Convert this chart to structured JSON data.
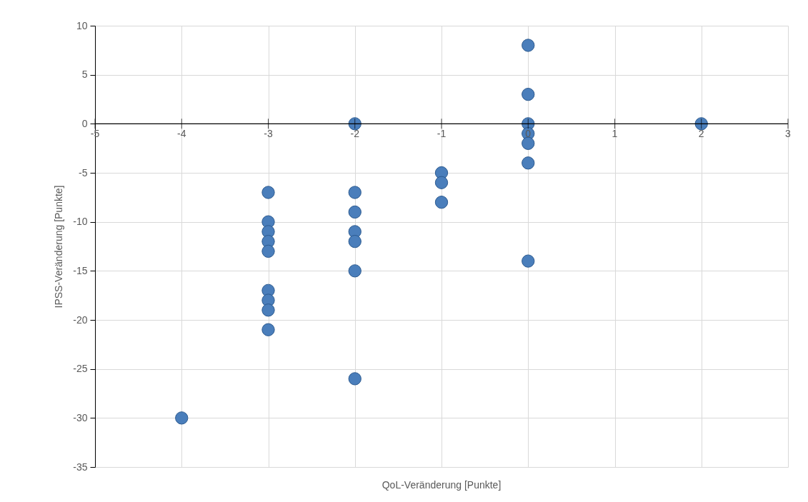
{
  "chart_data": {
    "type": "scatter",
    "xlabel": "QoL-Veränderung [Punkte]",
    "ylabel": "IPSS-Veränderung [Punkte]",
    "xlim": [
      -5,
      3
    ],
    "xticks": [
      -5,
      -4,
      -3,
      -2,
      -1,
      0,
      1,
      2,
      3
    ],
    "ylim": [
      -35,
      10
    ],
    "yticks": [
      -35,
      -30,
      -25,
      -20,
      -15,
      -10,
      -5,
      0,
      5,
      10
    ],
    "grid": true,
    "marker": "circle",
    "series": [
      {
        "color": "#4a7ebb",
        "x": [
          -4,
          -3,
          -3,
          -3,
          -3,
          -3,
          -3,
          -3,
          -3,
          -3,
          -2,
          -2,
          -2,
          -2,
          -2,
          -2,
          -2,
          -1,
          -1,
          -1,
          0,
          0,
          0,
          0,
          0,
          0,
          0,
          2
        ],
        "values": [
          -30,
          -7,
          -10,
          -11,
          -12,
          -13,
          -17,
          -18,
          -19,
          -21,
          0,
          -7,
          -9,
          -11,
          -12,
          -15,
          -26,
          -5,
          -6,
          -8,
          8,
          3,
          0,
          -1,
          -2,
          -4,
          -14,
          0
        ]
      }
    ]
  }
}
